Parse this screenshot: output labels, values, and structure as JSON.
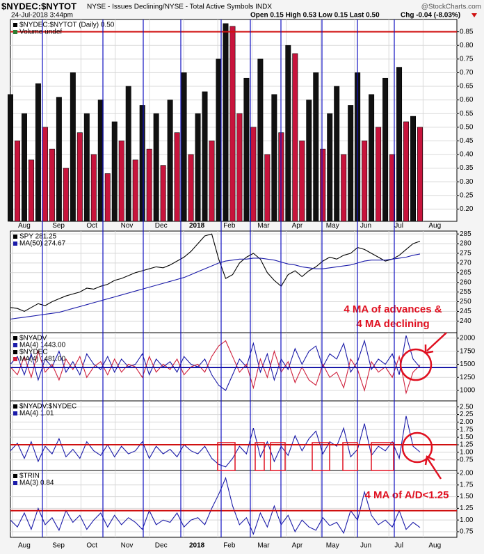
{
  "header": {
    "title": "$NYDEC:$NYTOT",
    "description": "NYSE - Issues Declining/NYSE - Total Active Symbols INDX",
    "watermark": "@StockCharts.com",
    "date": "24-Jul-2018 3:44pm",
    "quote": "Open 0.15 High 0.53 Low 0.15 Last 0.50",
    "change": "Chg -0.04 (-8.03%)"
  },
  "x_axis": {
    "labels": [
      "Aug",
      "Sep",
      "Oct",
      "Nov",
      "Dec",
      "2018",
      "Feb",
      "Mar",
      "Apr",
      "May",
      "Jun",
      "Jul",
      "Aug"
    ]
  },
  "chart_data": [
    {
      "type": "bar",
      "title": "$NYDEC:$NYTOT (Daily) 0.50",
      "subtitle": "Volume undef",
      "colors": {
        "up": "#111111",
        "down": "#c8143c"
      },
      "series": [
        {
          "name": "",
          "color": "#111111",
          "values": [
            0.62,
            0.45,
            0.55,
            0.38,
            0.66,
            0.5,
            0.42,
            0.61,
            0.35,
            0.7,
            0.48,
            0.55,
            0.4,
            0.6,
            0.33,
            0.52,
            0.45,
            0.65,
            0.38,
            0.58,
            0.42,
            0.55,
            0.36,
            0.6,
            0.48,
            0.7,
            0.4,
            0.55,
            0.63,
            0.45,
            0.75,
            0.88,
            0.87,
            0.55,
            0.68,
            0.5,
            0.75,
            0.4,
            0.62,
            0.48,
            0.8,
            0.77,
            0.45,
            0.6,
            0.7,
            0.42,
            0.55,
            0.65,
            0.4,
            0.58,
            0.7,
            0.45,
            0.62,
            0.5,
            0.68,
            0.4,
            0.72,
            0.52,
            0.54,
            0.5
          ]
        }
      ],
      "ylim": [
        0.155,
        0.895
      ],
      "yticks": [
        {
          "value": 0.2,
          "label": "0.20"
        },
        0.25,
        {
          "value": 0.3,
          "label": "0.30"
        },
        0.35,
        {
          "value": 0.4,
          "label": "0.40"
        },
        0.45,
        {
          "value": 0.5,
          "label": "0.50"
        },
        0.55,
        {
          "value": 0.6,
          "label": "0.60"
        },
        0.65,
        {
          "value": 0.7,
          "label": "0.70"
        },
        0.75,
        {
          "value": 0.8,
          "label": "0.80"
        },
        0.85
      ],
      "ref_lines": [
        {
          "value": 0.85,
          "color": "#d01010"
        }
      ]
    },
    {
      "type": "line",
      "series": [
        {
          "name": "SPY 281.25",
          "color": "#000000",
          "values": [
            247,
            246.5,
            245,
            247,
            249,
            248,
            250,
            251.5,
            253,
            254,
            255,
            257,
            256.5,
            258,
            259,
            261,
            262,
            263.5,
            265,
            266,
            267,
            268,
            267.5,
            269,
            271,
            273,
            276,
            280,
            284,
            285,
            272,
            262,
            264,
            270,
            273,
            275,
            272,
            265,
            261,
            258,
            264,
            266,
            263,
            266,
            268,
            271,
            273,
            272,
            274,
            275,
            278,
            277,
            275,
            273,
            271,
            272,
            274,
            277,
            280,
            281.25
          ]
        },
        {
          "name": "MA(50) 274.67",
          "color": "#1a1aa8",
          "values": [
            241,
            241.5,
            242,
            242.5,
            243,
            243.5,
            244,
            244.5,
            245.5,
            246.5,
            247.5,
            248.5,
            249.5,
            250.5,
            251.5,
            252.5,
            253.5,
            254.5,
            255.5,
            256.5,
            257.5,
            258.5,
            259.5,
            260.5,
            261.5,
            262.5,
            264,
            265.5,
            267,
            268.5,
            270,
            271,
            271.5,
            272,
            272,
            272.5,
            272.5,
            272,
            271.5,
            270.5,
            269.5,
            269,
            268,
            267.5,
            267,
            267,
            267.5,
            268,
            268.5,
            269,
            270,
            271,
            271.5,
            271.5,
            271.5,
            272,
            272.5,
            273,
            274,
            274.67
          ]
        }
      ],
      "ylim": [
        234,
        286.5
      ],
      "yticks": [
        240,
        245,
        250,
        255,
        260,
        265,
        270,
        275,
        280,
        285
      ],
      "annotations": [
        "4 MA of advances &",
        "4 MA declining"
      ]
    },
    {
      "type": "line",
      "series": [
        {
          "symbol": "$NYADV",
          "name": "MA(4) 1443.00",
          "color": "#1a1aa8",
          "values": [
            1500,
            1650,
            1300,
            1700,
            1200,
            1600,
            1450,
            1750,
            1350,
            1550,
            1300,
            1700,
            1500,
            1400,
            1650,
            1350,
            1600,
            1450,
            1500,
            1700,
            1300,
            1600,
            1450,
            1550,
            1350,
            1650,
            1500,
            1450,
            1600,
            1300,
            1100,
            1000,
            1300,
            1600,
            1450,
            1900,
            1350,
            1700,
            1200,
            1600,
            1400,
            1800,
            1500,
            1750,
            1850,
            1450,
            1700,
            1600,
            1900,
            1350,
            1550,
            1950,
            1400,
            1600,
            1500,
            1700,
            1300,
            2050,
            1600,
            1443
          ]
        },
        {
          "symbol": "$NYDEC",
          "name": "MA(4) 1481.00",
          "color": "#d0203c",
          "values": [
            1450,
            1300,
            1650,
            1250,
            1750,
            1350,
            1500,
            1200,
            1600,
            1400,
            1650,
            1250,
            1450,
            1550,
            1300,
            1600,
            1350,
            1500,
            1450,
            1250,
            1650,
            1350,
            1500,
            1400,
            1600,
            1300,
            1450,
            1500,
            1350,
            1650,
            1850,
            1950,
            1650,
            1350,
            1500,
            1050,
            1600,
            1250,
            1750,
            1350,
            1550,
            1150,
            1450,
            1200,
            1100,
            1500,
            1250,
            1350,
            1050,
            1600,
            1400,
            1000,
            1550,
            1350,
            1450,
            1250,
            1650,
            950,
            1350,
            1481
          ]
        }
      ],
      "ylim": [
        800,
        2105
      ],
      "yticks": [
        1000,
        1250,
        1500,
        1750,
        2000
      ],
      "ref_lines": [
        {
          "value": 1440,
          "color": "#1a1aa8"
        }
      ]
    },
    {
      "type": "line",
      "title": "$NYADV:$NYDEC",
      "series": [
        {
          "name": "MA(4) 1.01",
          "color": "#1a1aa8",
          "values": [
            1.05,
            1.3,
            0.8,
            1.35,
            0.7,
            1.2,
            0.95,
            1.45,
            0.85,
            1.1,
            0.8,
            1.35,
            1.05,
            0.9,
            1.25,
            0.85,
            1.2,
            0.95,
            1.05,
            1.35,
            0.8,
            1.2,
            0.95,
            1.1,
            0.85,
            1.25,
            1.05,
            0.95,
            1.2,
            0.8,
            0.6,
            0.52,
            0.8,
            1.2,
            0.95,
            1.8,
            0.85,
            1.35,
            0.7,
            1.2,
            0.9,
            1.55,
            1.05,
            1.45,
            1.7,
            0.95,
            1.35,
            1.2,
            1.8,
            0.85,
            1.1,
            1.95,
            0.9,
            1.2,
            1.05,
            1.35,
            0.8,
            2.2,
            1.2,
            1.01
          ]
        }
      ],
      "ylim": [
        0.4,
        2.7
      ],
      "yticks": [
        0.75,
        {
          "value": 1,
          "label": "1.00"
        },
        1.25,
        {
          "value": 1.5,
          "label": "1.50"
        },
        1.75,
        {
          "value": 2,
          "label": "2.00"
        },
        2.25,
        {
          "value": 2.5,
          "label": "2.50"
        }
      ],
      "ref_lines": [
        {
          "value": 1.25,
          "color": "#d01010"
        }
      ]
    },
    {
      "type": "line",
      "title": "$TRIN",
      "series": [
        {
          "name": "MA(3) 0.84",
          "color": "#1a1aa8",
          "values": [
            1.0,
            0.85,
            1.15,
            0.8,
            1.25,
            0.9,
            1.05,
            0.78,
            1.2,
            0.95,
            1.1,
            0.8,
            1.0,
            1.15,
            0.85,
            1.1,
            0.9,
            1.05,
            0.95,
            0.8,
            1.2,
            0.9,
            1.0,
            0.95,
            1.15,
            0.85,
            1.0,
            1.05,
            0.9,
            1.25,
            1.55,
            1.9,
            1.3,
            0.9,
            1.05,
            0.7,
            1.15,
            0.85,
            1.3,
            0.9,
            1.1,
            0.75,
            1.0,
            0.85,
            0.78,
            1.05,
            0.88,
            0.95,
            0.72,
            1.2,
            1.0,
            1.6,
            1.1,
            0.9,
            1.0,
            0.85,
            1.2,
            0.8,
            0.95,
            0.84
          ]
        }
      ],
      "ylim": [
        0.63,
        2.06
      ],
      "yticks": [
        0.75,
        {
          "value": 1,
          "label": "1.00"
        },
        1.25,
        {
          "value": 1.5,
          "label": "1.50"
        },
        1.75,
        {
          "value": 2,
          "label": "2.00"
        }
      ],
      "ref_lines": [
        {
          "value": 1.2,
          "color": "#d01010"
        }
      ],
      "annotations": [
        "4 MA of A/D<1.25"
      ]
    }
  ]
}
